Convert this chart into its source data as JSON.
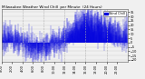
{
  "title": "Milwaukee Weather Wind Chill",
  "title2": "per Minute",
  "title3": "(24 Hours)",
  "line_color": "#0000dd",
  "bg_color": "#f0f0f0",
  "plot_bg_color": "#f0f0f0",
  "grid_color": "#aaaaaa",
  "n_points": 1440,
  "y_min": -22,
  "y_max": 38,
  "yticks": [
    -20,
    -15,
    -10,
    -5,
    0,
    5,
    10,
    15,
    20,
    25,
    30,
    35
  ],
  "n_vgrid_lines": 5,
  "legend_label": "Wind Chill",
  "legend_color": "#0000dd",
  "title_fontsize": 3.0,
  "tick_fontsize": 2.5,
  "figsize": [
    1.6,
    0.87
  ],
  "dpi": 100
}
